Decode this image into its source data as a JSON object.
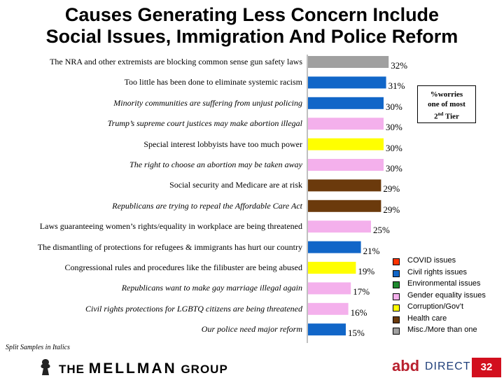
{
  "title_line1": "Causes Generating Less Concern Include",
  "title_line2": "Social Issues, Immigration And Police Reform",
  "chart_data": {
    "type": "bar",
    "orientation": "horizontal",
    "unit": "%",
    "xlim": [
      0,
      35
    ],
    "categories": [
      "The NRA and other extremists are blocking common sense gun safety laws",
      "Too little has been done to eliminate systemic racism",
      "Minority communities are suffering from unjust policing",
      "Trump’s supreme court justices may make abortion illegal",
      "Special interest lobbyists have too much power",
      "The right to choose an abortion may be taken away",
      "Social security and Medicare are at risk",
      "Republicans are trying to repeal the Affordable Care Act",
      "Laws guaranteeing women’s rights/equality in workplace are being threatened",
      "The dismantling of protections for refugees & immigrants has hurt our country",
      "Congressional rules and procedures like the filibuster are being abused",
      "Republicans want to make gay marriage illegal again",
      "Civil rights protections for LGBTQ citizens are being threatened",
      "Our police need major reform"
    ],
    "values": [
      32,
      31,
      30,
      30,
      30,
      30,
      29,
      29,
      25,
      21,
      19,
      17,
      16,
      15
    ],
    "value_labels": [
      "32%",
      "31%",
      "30%",
      "30%",
      "30%",
      "30%",
      "29%",
      "29%",
      "25%",
      "21%",
      "19%",
      "17%",
      "16%",
      "15%"
    ],
    "categories_groups": [
      "misc",
      "civil",
      "civil",
      "gender",
      "corruption",
      "gender",
      "health",
      "health",
      "gender",
      "civil",
      "corruption",
      "gender",
      "gender",
      "civil"
    ],
    "italic": [
      false,
      false,
      true,
      true,
      false,
      true,
      false,
      true,
      false,
      false,
      false,
      true,
      true,
      true
    ],
    "legend": [
      {
        "name": "COVID issues",
        "color": "#ff3300"
      },
      {
        "name": "Civil rights issues",
        "color": "#1166c8"
      },
      {
        "name": "Environmental issues",
        "color": "#1f8a2f"
      },
      {
        "name": "Gender equality issues",
        "color": "#f4b0ec"
      },
      {
        "name": "Corruption/Gov’t",
        "color": "#ffff00"
      },
      {
        "name": "Health care",
        "color": "#6b3a0c"
      },
      {
        "name": "Misc./More than one",
        "color": "#a0a0a0"
      }
    ],
    "colors": {
      "misc": "#a0a0a0",
      "civil": "#1166c8",
      "gender": "#f4b0ec",
      "corruption": "#ffff00",
      "health": "#6b3a0c"
    }
  },
  "note_box": {
    "line1": "%worries",
    "line2": "one of most",
    "line3_pre": "2",
    "line3_sup": "nd",
    "line3_post": " Tier"
  },
  "split_note": "Split Samples in Italics",
  "footer": {
    "company": "THE MELLMAN GROUP",
    "company_pre": "THE ",
    "company_main": "MELLMAN",
    "company_post": " GROUP",
    "abd": "abd",
    "direct": "DIRECT",
    "page_number": "32"
  }
}
